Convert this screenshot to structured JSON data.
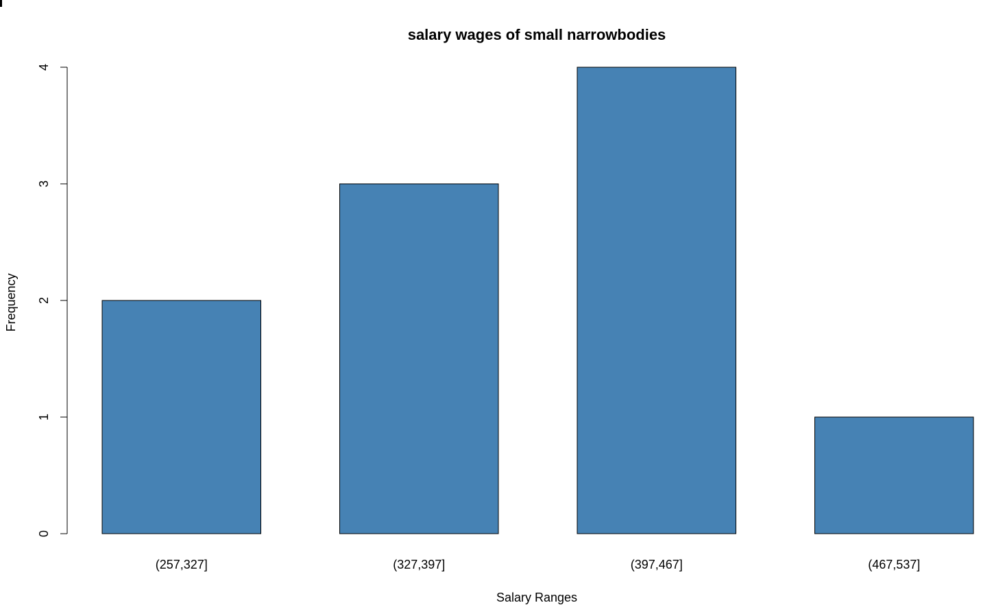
{
  "chart_data": {
    "type": "bar",
    "title": "salary wages of small narrowbodies",
    "xlabel": "Salary Ranges",
    "ylabel": "Frequency",
    "categories": [
      "(257,327]",
      "(327,397]",
      "(397,467]",
      "(467,537]"
    ],
    "values": [
      2,
      3,
      4,
      1
    ],
    "yticks": [
      "0",
      "1",
      "2",
      "3",
      "4"
    ],
    "ylim": [
      0,
      4
    ],
    "grid": false,
    "legend": "none",
    "bar_color": "#4682B4",
    "bar_border_color": "#000000"
  }
}
